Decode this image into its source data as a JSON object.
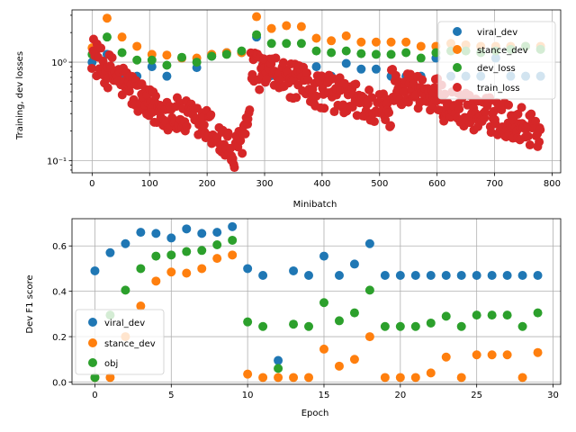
{
  "chart_data": [
    {
      "type": "scatter",
      "xlabel": "Minibatch",
      "ylabel": "Training, dev losses",
      "yscale": "log",
      "xlim": [
        -35,
        815
      ],
      "ylim": [
        0.075,
        3.4
      ],
      "xticks": [
        0,
        100,
        200,
        300,
        400,
        500,
        600,
        700,
        800
      ],
      "xtick_labels": [
        "0",
        "100",
        "200",
        "300",
        "400",
        "500",
        "600",
        "700",
        "800"
      ],
      "yticks": [
        0.1,
        1
      ],
      "ytick_labels": [
        "10⁻¹",
        "10⁰"
      ],
      "legend_position": "top-right",
      "colors": {
        "viral_dev": "#1f77b4",
        "stance_dev": "#ff7f0e",
        "dev_loss": "#2ca02c",
        "train_loss": "#d62728"
      },
      "series": [
        {
          "name": "viral_dev",
          "x": [
            0,
            26,
            52,
            78,
            104,
            130,
            156,
            182,
            208,
            234,
            260,
            286,
            312,
            338,
            364,
            390,
            416,
            442,
            468,
            494,
            520,
            546,
            572,
            598,
            624,
            650,
            676,
            702,
            728,
            754,
            780
          ],
          "values": [
            1.0,
            1.2,
            0.72,
            0.72,
            0.9,
            0.72,
            1.1,
            0.88,
            1.15,
            1.25,
            1.25,
            1.8,
            0.73,
            0.72,
            0.73,
            0.9,
            0.72,
            0.97,
            0.85,
            0.85,
            0.72,
            0.72,
            0.72,
            1.1,
            0.72,
            0.72,
            0.72,
            1.1,
            0.72,
            0.72,
            0.72
          ]
        },
        {
          "name": "stance_dev",
          "x": [
            0,
            26,
            52,
            78,
            104,
            130,
            156,
            182,
            208,
            234,
            260,
            286,
            312,
            338,
            364,
            390,
            416,
            442,
            468,
            494,
            520,
            546,
            572,
            598,
            624,
            650,
            676,
            702,
            728,
            754,
            780
          ],
          "values": [
            1.4,
            2.8,
            1.8,
            1.45,
            1.2,
            1.18,
            1.1,
            1.1,
            1.2,
            1.25,
            1.25,
            2.9,
            2.2,
            2.35,
            2.3,
            1.75,
            1.65,
            1.85,
            1.6,
            1.6,
            1.6,
            1.6,
            1.45,
            1.45,
            1.55,
            1.5,
            1.45,
            1.45,
            1.45,
            1.45,
            1.45
          ]
        },
        {
          "name": "dev_loss",
          "x": [
            0,
            26,
            52,
            78,
            104,
            130,
            156,
            182,
            208,
            234,
            260,
            286,
            312,
            338,
            364,
            390,
            416,
            442,
            468,
            494,
            520,
            546,
            572,
            598,
            624,
            650,
            676,
            702,
            728,
            754,
            780
          ],
          "values": [
            1.2,
            1.8,
            1.25,
            1.05,
            1.05,
            0.93,
            1.12,
            1.0,
            1.15,
            1.2,
            1.3,
            1.9,
            1.55,
            1.55,
            1.55,
            1.3,
            1.25,
            1.3,
            1.22,
            1.2,
            1.2,
            1.25,
            1.1,
            1.25,
            1.3,
            1.3,
            1.25,
            1.3,
            1.35,
            1.45,
            1.35
          ]
        },
        {
          "name": "train_loss",
          "generator": "noisy-cycles",
          "x_range": [
            0,
            780
          ],
          "segments": [
            {
              "x0": 0,
              "x1": 10,
              "y0": 1.3,
              "y1": 1.0
            },
            {
              "x0": 10,
              "x1": 100,
              "y0": 0.95,
              "y1": 0.3
            },
            {
              "x0": 100,
              "x1": 200,
              "y0": 0.35,
              "y1": 0.22
            },
            {
              "x0": 200,
              "x1": 250,
              "y0": 0.22,
              "y1": 0.1
            },
            {
              "x0": 250,
              "x1": 275,
              "y0": 0.12,
              "y1": 0.25
            },
            {
              "x0": 275,
              "x1": 380,
              "y0": 0.85,
              "y1": 0.55
            },
            {
              "x0": 380,
              "x1": 520,
              "y0": 0.55,
              "y1": 0.3
            },
            {
              "x0": 520,
              "x1": 600,
              "y0": 0.6,
              "y1": 0.45
            },
            {
              "x0": 600,
              "x1": 680,
              "y0": 0.4,
              "y1": 0.28
            },
            {
              "x0": 680,
              "x1": 780,
              "y0": 0.3,
              "y1": 0.2
            }
          ]
        }
      ]
    },
    {
      "type": "scatter",
      "xlabel": "Epoch",
      "ylabel": "Dev F1 score",
      "xlim": [
        -1.5,
        30.5
      ],
      "ylim": [
        -0.01,
        0.72
      ],
      "xticks": [
        0,
        5,
        10,
        15,
        20,
        25,
        30
      ],
      "xtick_labels": [
        "0",
        "5",
        "10",
        "15",
        "20",
        "25",
        "30"
      ],
      "yticks": [
        0.0,
        0.2,
        0.4,
        0.6
      ],
      "ytick_labels": [
        "0.0",
        "0.2",
        "0.4",
        "0.6"
      ],
      "legend_position": "center-left",
      "colors": {
        "viral_dev": "#1f77b4",
        "stance_dev": "#ff7f0e",
        "obj": "#2ca02c"
      },
      "series": [
        {
          "name": "viral_dev",
          "x": [
            0,
            1,
            2,
            3,
            4,
            5,
            6,
            7,
            8,
            9,
            10,
            11,
            12,
            13,
            14,
            15,
            16,
            17,
            18,
            19,
            20,
            21,
            22,
            23,
            24,
            25,
            26,
            27,
            28,
            29
          ],
          "values": [
            0.49,
            0.57,
            0.61,
            0.66,
            0.655,
            0.635,
            0.675,
            0.655,
            0.66,
            0.685,
            0.5,
            0.47,
            0.095,
            0.49,
            0.47,
            0.555,
            0.47,
            0.52,
            0.61,
            0.47,
            0.47,
            0.47,
            0.47,
            0.47,
            0.47,
            0.47,
            0.47,
            0.47,
            0.47,
            0.47
          ]
        },
        {
          "name": "stance_dev",
          "x": [
            0,
            1,
            2,
            3,
            4,
            5,
            6,
            7,
            8,
            9,
            10,
            11,
            12,
            13,
            14,
            15,
            16,
            17,
            18,
            19,
            20,
            21,
            22,
            23,
            24,
            25,
            26,
            27,
            28,
            29
          ],
          "values": [
            0.02,
            0.02,
            0.2,
            0.335,
            0.445,
            0.485,
            0.48,
            0.5,
            0.545,
            0.56,
            0.035,
            0.02,
            0.02,
            0.02,
            0.02,
            0.145,
            0.07,
            0.1,
            0.2,
            0.02,
            0.02,
            0.02,
            0.04,
            0.11,
            0.02,
            0.12,
            0.12,
            0.12,
            0.02,
            0.13
          ]
        },
        {
          "name": "obj",
          "x": [
            0,
            1,
            2,
            3,
            4,
            5,
            6,
            7,
            8,
            9,
            10,
            11,
            12,
            13,
            14,
            15,
            16,
            17,
            18,
            19,
            20,
            21,
            22,
            23,
            24,
            25,
            26,
            27,
            28,
            29
          ],
          "values": [
            0.02,
            0.295,
            0.405,
            0.5,
            0.555,
            0.56,
            0.575,
            0.58,
            0.605,
            0.625,
            0.265,
            0.245,
            0.06,
            0.255,
            0.245,
            0.35,
            0.27,
            0.305,
            0.405,
            0.245,
            0.245,
            0.245,
            0.26,
            0.29,
            0.245,
            0.295,
            0.295,
            0.295,
            0.245,
            0.305
          ]
        }
      ]
    }
  ]
}
